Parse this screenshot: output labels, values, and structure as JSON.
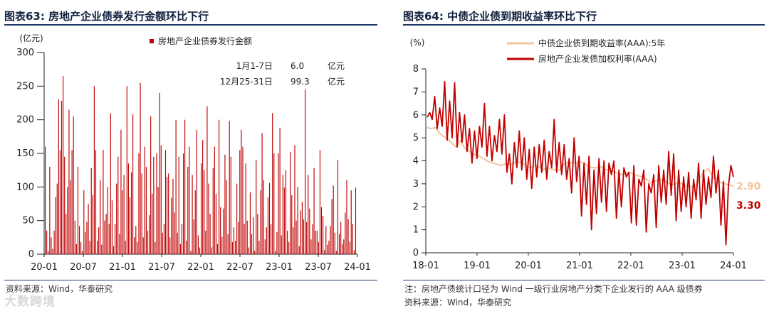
{
  "left": {
    "title": "图表63:  房地产企业债券发行金额环比下行",
    "source": "资料来源：Wind，华泰研究",
    "chart_data": {
      "type": "bar",
      "y_unit": "(亿元)",
      "ylim": [
        0,
        300
      ],
      "yticks": [
        0,
        50,
        100,
        150,
        200,
        250,
        300
      ],
      "x_tick_labels": [
        "20-01",
        "20-07",
        "21-01",
        "21-07",
        "22-01",
        "22-07",
        "23-01",
        "23-07",
        "24-01"
      ],
      "x_range_weeks": [
        0,
        210
      ],
      "legend": "房地产企业债券发行金额",
      "color": "#c00000",
      "annotation_rows": [
        {
          "label": "1月1-7日",
          "value": "6.0",
          "unit": "亿元"
        },
        {
          "label": "12月25-31日",
          "value": "99.3",
          "unit": "亿元"
        }
      ],
      "values": [
        160,
        35,
        5,
        130,
        25,
        8,
        35,
        85,
        105,
        230,
        155,
        228,
        265,
        145,
        60,
        100,
        215,
        110,
        155,
        205,
        50,
        15,
        130,
        42,
        18,
        5,
        95,
        33,
        48,
        75,
        20,
        128,
        88,
        250,
        155,
        20,
        40,
        110,
        14,
        155,
        50,
        60,
        100,
        45,
        210,
        80,
        12,
        45,
        105,
        145,
        30,
        185,
        95,
        118,
        20,
        250,
        135,
        85,
        122,
        208,
        25,
        42,
        18,
        150,
        255,
        120,
        25,
        160,
        130,
        35,
        58,
        205,
        90,
        145,
        18,
        150,
        100,
        240,
        162,
        32,
        45,
        155,
        115,
        120,
        25,
        84,
        112,
        62,
        200,
        32,
        145,
        15,
        45,
        150,
        200,
        20,
        130,
        160,
        5,
        118,
        52,
        95,
        185,
        28,
        10,
        135,
        170,
        125,
        35,
        220,
        105,
        60,
        10,
        128,
        160,
        90,
        15,
        200,
        70,
        26,
        68,
        148,
        110,
        30,
        198,
        145,
        18,
        40,
        20,
        105,
        48,
        155,
        185,
        160,
        45,
        135,
        50,
        10,
        92,
        30,
        55,
        5,
        140,
        60,
        20,
        95,
        180,
        110,
        22,
        40,
        85,
        106,
        45,
        210,
        150,
        5,
        33,
        150,
        188,
        28,
        118,
        99,
        125,
        35,
        18,
        152,
        88,
        40,
        162,
        50,
        100,
        12,
        65,
        78,
        52,
        245,
        48,
        118,
        68,
        22,
        45,
        128,
        35,
        35,
        18,
        155,
        70,
        57,
        6,
        42,
        14,
        20,
        42,
        82,
        102,
        32,
        5,
        140,
        30,
        48,
        15,
        22,
        62,
        110,
        52,
        18,
        95,
        45,
        6,
        99
      ]
    }
  },
  "right": {
    "title": "图表64:  中债企业债到期收益率环比下行",
    "note": "注：房地产债统计口径为 Wind 一级行业房地产分类下企业发行的 AAA 级债券",
    "source": "资料来源：Wind，华泰研究",
    "chart_data": {
      "type": "line",
      "y_unit": "(%)",
      "ylim": [
        0,
        8
      ],
      "yticks": [
        0,
        1,
        2,
        3,
        4,
        5,
        6,
        7,
        8
      ],
      "x_tick_labels": [
        "18-01",
        "19-01",
        "20-01",
        "21-01",
        "22-01",
        "23-01",
        "24-01"
      ],
      "series": [
        {
          "name": "中债企业债到期收益率(AAA):5年",
          "color": "#f4c49c",
          "end_label": "2.90",
          "values": [
            5.45,
            5.4,
            5.45,
            5.2,
            5.05,
            4.95,
            4.75,
            4.6,
            4.9,
            4.55,
            4.45,
            4.3,
            4.25,
            4.15,
            4.05,
            3.95,
            3.9,
            3.85,
            3.8,
            3.88,
            3.85,
            3.9,
            3.95,
            3.9,
            3.75,
            3.7,
            3.8,
            3.75,
            3.6,
            3.7,
            3.65,
            3.6,
            3.6,
            3.85,
            3.95,
            3.9,
            3.92,
            3.95,
            3.9,
            3.75,
            3.7,
            3.7,
            3.75,
            3.6,
            3.6,
            3.55,
            3.45,
            3.4,
            3.45,
            3.5,
            3.4,
            3.35,
            3.3,
            3.2,
            3.05,
            3.1,
            3.15,
            3.2,
            3.05,
            2.95,
            3.0,
            3.05,
            2.95,
            2.9,
            2.85,
            2.95,
            3.3,
            3.55,
            3.65,
            3.3,
            3.2,
            3.05,
            3.0,
            2.95,
            2.9
          ]
        },
        {
          "name": "房地产企业发债加权利率(AAA)",
          "color": "#c00000",
          "end_label": "3.30",
          "values": [
            5.9,
            6.1,
            5.8,
            6.8,
            5.4,
            6.3,
            5.5,
            7.45,
            4.9,
            6.6,
            5.0,
            7.4,
            4.6,
            6.1,
            4.8,
            6.0,
            4.4,
            5.4,
            3.9,
            5.3,
            4.1,
            5.5,
            4.6,
            6.5,
            4.2,
            5.5,
            4.0,
            5.1,
            4.4,
            5.8,
            4.3,
            6.0,
            3.5,
            4.3,
            3.0,
            4.8,
            3.7,
            5.3,
            3.6,
            5.0,
            3.2,
            4.5,
            2.8,
            4.6,
            3.3,
            4.7,
            3.5,
            4.9,
            3.2,
            4.4,
            3.7,
            5.8,
            3.5,
            4.8,
            3.4,
            4.7,
            3.2,
            4.1,
            2.6,
            5.0,
            3.1,
            4.2,
            1.6,
            3.9,
            2.1,
            4.2,
            1.0,
            3.6,
            1.7,
            4.1,
            2.2,
            4.0,
            1.8,
            3.9,
            3.4,
            4.0,
            1.5,
            3.6,
            2.0,
            3.7,
            3.3,
            3.5,
            1.3,
            3.8,
            1.2,
            3.2,
            2.9,
            3.6,
            0.9,
            3.0,
            2.6,
            3.4,
            1.1,
            3.8,
            2.2,
            3.6,
            2.1,
            4.4,
            2.5,
            4.3,
            1.4,
            3.6,
            1.8,
            3.3,
            2.0,
            3.5,
            1.5,
            3.2,
            2.3,
            3.9,
            1.5,
            3.6,
            2.1,
            3.3,
            2.4,
            4.2,
            2.6,
            3.6,
            1.2,
            3.1,
            0.35,
            2.9,
            3.8,
            3.3
          ]
        }
      ]
    }
  },
  "watermark": "大数跨境"
}
